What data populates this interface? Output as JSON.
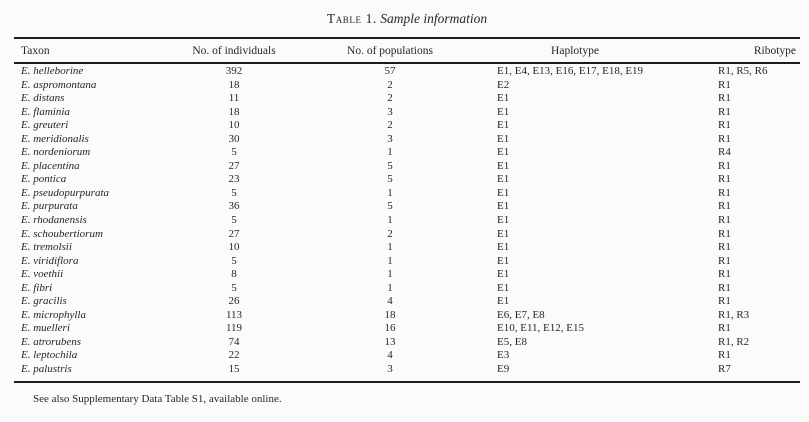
{
  "title": {
    "label": "Table 1.",
    "subtitle": "Sample information"
  },
  "columns": {
    "taxon": "Taxon",
    "individuals": "No. of individuals",
    "populations": "No. of populations",
    "haplotype": "Haplotype",
    "ribotype": "Ribotype"
  },
  "rows": [
    {
      "taxon": "E. helleborine",
      "individuals": "392",
      "populations": "57",
      "haplotype": "E1, E4, E13, E16, E17, E18, E19",
      "ribotype": "R1, R5, R6"
    },
    {
      "taxon": "E. aspromontana",
      "individuals": "18",
      "populations": "2",
      "haplotype": "E2",
      "ribotype": "R1"
    },
    {
      "taxon": "E. distans",
      "individuals": "11",
      "populations": "2",
      "haplotype": "E1",
      "ribotype": "R1"
    },
    {
      "taxon": "E. flaminia",
      "individuals": "18",
      "populations": "3",
      "haplotype": "E1",
      "ribotype": "R1"
    },
    {
      "taxon": "E. greuteri",
      "individuals": "10",
      "populations": "2",
      "haplotype": "E1",
      "ribotype": "R1"
    },
    {
      "taxon": "E. meridionalis",
      "individuals": "30",
      "populations": "3",
      "haplotype": "E1",
      "ribotype": "R1"
    },
    {
      "taxon": "E. nordeniorum",
      "individuals": "5",
      "populations": "1",
      "haplotype": "E1",
      "ribotype": "R4"
    },
    {
      "taxon": "E. placentina",
      "individuals": "27",
      "populations": "5",
      "haplotype": "E1",
      "ribotype": "R1"
    },
    {
      "taxon": "E. pontica",
      "individuals": "23",
      "populations": "5",
      "haplotype": "E1",
      "ribotype": "R1"
    },
    {
      "taxon": "E. pseudopurpurata",
      "individuals": "5",
      "populations": "1",
      "haplotype": "E1",
      "ribotype": "R1"
    },
    {
      "taxon": "E. purpurata",
      "individuals": "36",
      "populations": "5",
      "haplotype": "E1",
      "ribotype": "R1"
    },
    {
      "taxon": "E. rhodanensis",
      "individuals": "5",
      "populations": "1",
      "haplotype": "E1",
      "ribotype": "R1"
    },
    {
      "taxon": "E. schoubertiorum",
      "individuals": "27",
      "populations": "2",
      "haplotype": "E1",
      "ribotype": "R1"
    },
    {
      "taxon": "E. tremolsii",
      "individuals": "10",
      "populations": "1",
      "haplotype": "E1",
      "ribotype": "R1"
    },
    {
      "taxon": "E. viridiflora",
      "individuals": "5",
      "populations": "1",
      "haplotype": "E1",
      "ribotype": "R1"
    },
    {
      "taxon": "E. voethii",
      "individuals": "8",
      "populations": "1",
      "haplotype": "E1",
      "ribotype": "R1"
    },
    {
      "taxon": "E. fibri",
      "individuals": "5",
      "populations": "1",
      "haplotype": "E1",
      "ribotype": "R1"
    },
    {
      "taxon": "E. gracilis",
      "individuals": "26",
      "populations": "4",
      "haplotype": "E1",
      "ribotype": "R1"
    },
    {
      "taxon": "E. microphylla",
      "individuals": "113",
      "populations": "18",
      "haplotype": "E6, E7, E8",
      "ribotype": "R1, R3"
    },
    {
      "taxon": "E. muelleri",
      "individuals": "119",
      "populations": "16",
      "haplotype": "E10, E11, E12, E15",
      "ribotype": "R1"
    },
    {
      "taxon": "E. atrorubens",
      "individuals": "74",
      "populations": "13",
      "haplotype": "E5, E8",
      "ribotype": "R1, R2"
    },
    {
      "taxon": "E. leptochila",
      "individuals": "22",
      "populations": "4",
      "haplotype": "E3",
      "ribotype": "R1"
    },
    {
      "taxon": "E. palustris",
      "individuals": "15",
      "populations": "3",
      "haplotype": "E9",
      "ribotype": "R7"
    }
  ],
  "footnote": "See also Supplementary Data Table S1, available online."
}
